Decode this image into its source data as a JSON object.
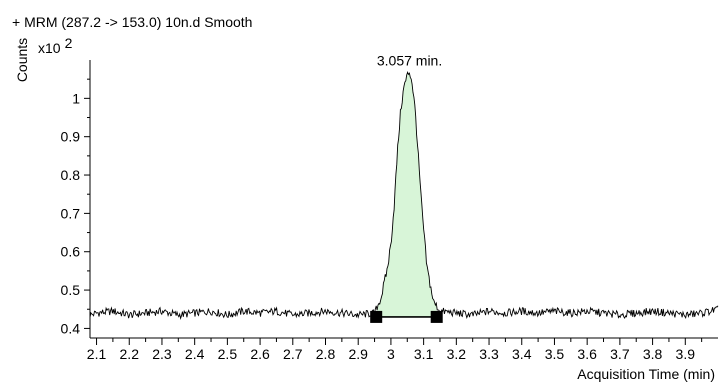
{
  "chart_data": {
    "type": "line",
    "title": "+ MRM (287.2 -> 153.0) 10n.d  Smooth",
    "ylabel": "Counts",
    "y_multiplier": "x10",
    "y_exponent": "2",
    "xlabel": "Acquisition Time (min)",
    "xlim": [
      2.08,
      4.0
    ],
    "ylim": [
      0.375,
      1.1
    ],
    "x_ticks": [
      "2.1",
      "2.2",
      "2.3",
      "2.4",
      "2.5",
      "2.6",
      "2.7",
      "2.8",
      "2.9",
      "3",
      "3.1",
      "3.2",
      "3.3",
      "3.4",
      "3.5",
      "3.6",
      "3.7",
      "3.8",
      "3.9"
    ],
    "y_ticks": [
      "0.4",
      "0.5",
      "0.6",
      "0.7",
      "0.8",
      "0.9",
      "1"
    ],
    "baseline_level": 0.435,
    "peak": {
      "apex_x": 3.057,
      "apex_y": 1.07,
      "label": "3.057 min.",
      "start_x": 2.955,
      "end_x": 3.14,
      "integration_baseline_y": 0.43,
      "fill_color": "#d8f5d8"
    },
    "series": [
      {
        "x": [
          2.08,
          2.1,
          2.15,
          2.2,
          2.25,
          2.3,
          2.35,
          2.4,
          2.45,
          2.5,
          2.55,
          2.6,
          2.65,
          2.7,
          2.75,
          2.8,
          2.85,
          2.9,
          2.95,
          2.97,
          2.99,
          3.0,
          3.01,
          3.02,
          3.03,
          3.04,
          3.05,
          3.057,
          3.065,
          3.075,
          3.085,
          3.095,
          3.11,
          3.13,
          3.15,
          3.2,
          3.25,
          3.3,
          3.35,
          3.4,
          3.45,
          3.5,
          3.55,
          3.6,
          3.65,
          3.7,
          3.75,
          3.8,
          3.85,
          3.9,
          3.95,
          4.0
        ],
        "values": [
          0.435,
          0.44,
          0.445,
          0.435,
          0.44,
          0.445,
          0.435,
          0.44,
          0.445,
          0.435,
          0.445,
          0.44,
          0.445,
          0.435,
          0.44,
          0.445,
          0.44,
          0.435,
          0.44,
          0.48,
          0.56,
          0.62,
          0.72,
          0.86,
          0.97,
          1.03,
          1.06,
          1.07,
          1.04,
          0.96,
          0.83,
          0.71,
          0.56,
          0.47,
          0.445,
          0.44,
          0.435,
          0.445,
          0.44,
          0.445,
          0.44,
          0.445,
          0.44,
          0.445,
          0.44,
          0.435,
          0.44,
          0.445,
          0.44,
          0.435,
          0.44,
          0.45
        ]
      }
    ]
  }
}
